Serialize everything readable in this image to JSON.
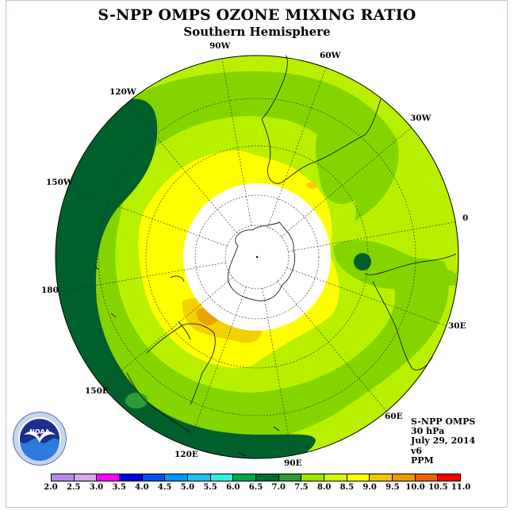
{
  "title": "S-NPP OMPS OZONE MIXING RATIO",
  "subtitle": "Southern Hemisphere",
  "longitude_labels": [
    "90W",
    "60W",
    "30W",
    "0",
    "30E",
    "60E",
    "90E",
    "120E",
    "150E",
    "180",
    "150W",
    "120W"
  ],
  "info": {
    "instrument": "S-NPP OMPS",
    "pressure_level": "30 hPa",
    "date": "July 29, 2014",
    "version": "v6",
    "units": "PPM"
  },
  "logo": {
    "text": "NOAA",
    "ring_text": "NATIONAL OCEANIC AND ATMOSPHERIC ADMINISTRATION · U.S. DEPARTMENT OF COMMERCE"
  },
  "colorbar": {
    "ticks": [
      "2.0",
      "2.5",
      "3.0",
      "3.5",
      "4.0",
      "4.5",
      "5.0",
      "5.5",
      "6.0",
      "6.5",
      "7.0",
      "7.5",
      "8.0",
      "8.5",
      "9.0",
      "9.5",
      "10.0",
      "10.5",
      "11.0"
    ],
    "colors": [
      "#b58be8",
      "#d8a8f0",
      "#ff00ff",
      "#0000e0",
      "#0050f0",
      "#0096ff",
      "#1ec0f0",
      "#30f0e0",
      "#00a848",
      "#006e2e",
      "#2c9c34",
      "#a0e600",
      "#d2ff00",
      "#ffff00",
      "#f0c800",
      "#f09800",
      "#f06000",
      "#ff0000",
      "#8b5a2b"
    ]
  },
  "map_colors": {
    "lt_7_0": "#00602c",
    "7_0_7_5": "#84d400",
    "7_5_8_0": "#b8f000",
    "8_0_8_5": "#ffff00",
    "8_5_9_0": "#f5d000",
    "9_0_9_5": "#eca400",
    "no_data": "#ffffff"
  }
}
